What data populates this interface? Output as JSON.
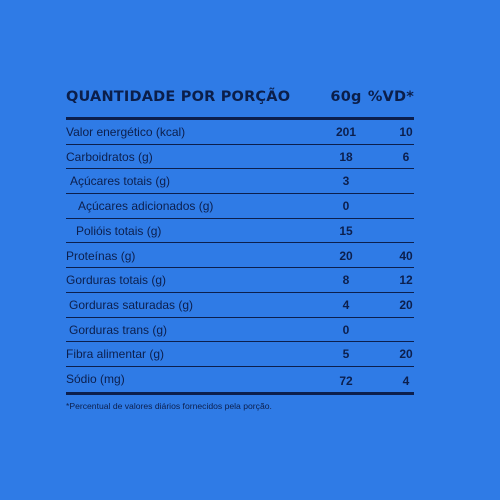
{
  "header": {
    "label": "QUANTIDADE POR PORÇÃO",
    "portion": "60g",
    "vd": "%VD*"
  },
  "rows": [
    {
      "label": "Valor energético (kcal)",
      "value": "201",
      "vd": "10"
    },
    {
      "label": "Carboidratos (g)",
      "value": "18",
      "vd": "6"
    },
    {
      "label": "Açúcares totais (g)",
      "value": "3",
      "vd": ""
    },
    {
      "label": "Açúcares adicionados (g)",
      "value": "0",
      "vd": ""
    },
    {
      "label": "Polióis totais (g)",
      "value": "15",
      "vd": ""
    },
    {
      "label": "Proteínas (g)",
      "value": "20",
      "vd": "40"
    },
    {
      "label": "Gorduras totais (g)",
      "value": "8",
      "vd": "12"
    },
    {
      "label": "Gorduras saturadas (g)",
      "value": "4",
      "vd": "20"
    },
    {
      "label": "Gorduras trans (g)",
      "value": "0",
      "vd": ""
    },
    {
      "label": "Fibra alimentar (g)",
      "value": "5",
      "vd": "20"
    },
    {
      "label": "Sódio (mg)",
      "value": "72",
      "vd": "4"
    }
  ],
  "footnote": "*Percentual de valores diários fornecidos pela porção.",
  "colors": {
    "background": "#2f7be6",
    "text": "#0c1f4d"
  }
}
